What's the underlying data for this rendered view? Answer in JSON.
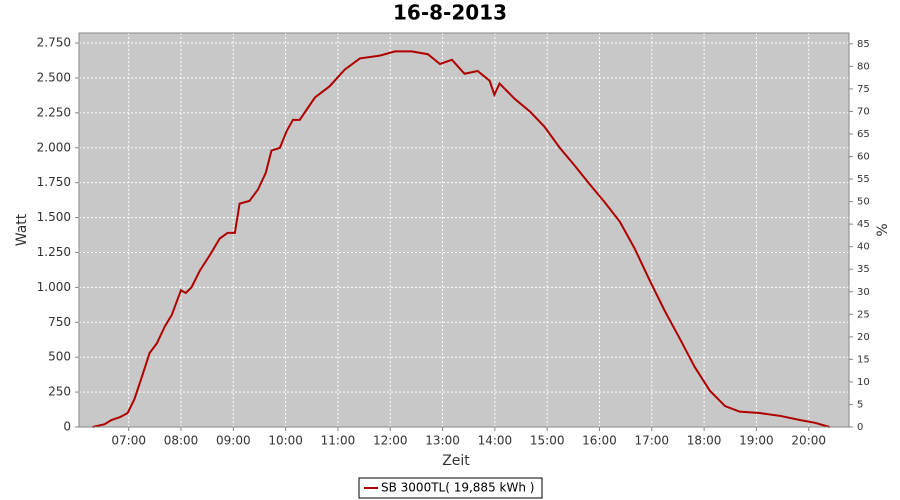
{
  "chart_data": {
    "type": "line",
    "title": "16-8-2013",
    "x_label": "Zeit",
    "y_label": "Watt",
    "y2_label": "%",
    "x": [
      6.31,
      6.54,
      6.67,
      6.83,
      6.98,
      7.11,
      7.27,
      7.4,
      7.54,
      7.69,
      7.82,
      8.0,
      8.09,
      8.2,
      8.36,
      8.55,
      8.74,
      8.89,
      9.03,
      9.12,
      9.31,
      9.47,
      9.62,
      9.73,
      9.89,
      10.02,
      10.14,
      10.27,
      10.56,
      10.84,
      11.13,
      11.42,
      11.8,
      12.09,
      12.41,
      12.72,
      12.95,
      13.18,
      13.42,
      13.67,
      13.9,
      13.99,
      14.09,
      14.38,
      14.67,
      14.95,
      15.24,
      15.53,
      15.81,
      16.1,
      16.39,
      16.67,
      16.96,
      17.25,
      17.54,
      17.82,
      18.11,
      18.4,
      18.68,
      19.06,
      19.45,
      19.83,
      20.12,
      20.4
    ],
    "series": [
      {
        "name": "SB 3000TL( 19,885 kWh )",
        "color": "#b00000",
        "values": [
          0,
          20,
          50,
          70,
          100,
          200,
          380,
          530,
          600,
          720,
          800,
          980,
          960,
          1000,
          1120,
          1230,
          1350,
          1390,
          1390,
          1600,
          1620,
          1700,
          1820,
          1980,
          2000,
          2120,
          2200,
          2200,
          2360,
          2440,
          2560,
          2640,
          2660,
          2690,
          2690,
          2670,
          2600,
          2630,
          2530,
          2550,
          2480,
          2380,
          2460,
          2350,
          2260,
          2150,
          2000,
          1870,
          1740,
          1610,
          1470,
          1280,
          1050,
          830,
          630,
          430,
          260,
          150,
          110,
          100,
          80,
          50,
          30,
          0
        ]
      }
    ],
    "xlim": [
      6.05,
      20.77
    ],
    "xticks": [
      {
        "value": 7,
        "label": "07:00"
      },
      {
        "value": 8,
        "label": "08:00"
      },
      {
        "value": 9,
        "label": "09:00"
      },
      {
        "value": 10,
        "label": "10:00"
      },
      {
        "value": 11,
        "label": "11:00"
      },
      {
        "value": 12,
        "label": "12:00"
      },
      {
        "value": 13,
        "label": "13:00"
      },
      {
        "value": 14,
        "label": "14:00"
      },
      {
        "value": 15,
        "label": "15:00"
      },
      {
        "value": 16,
        "label": "16:00"
      },
      {
        "value": 17,
        "label": "17:00"
      },
      {
        "value": 18,
        "label": "18:00"
      },
      {
        "value": 19,
        "label": "19:00"
      },
      {
        "value": 20,
        "label": "20:00"
      }
    ],
    "ylim": [
      0,
      2822
    ],
    "yticks": [
      0,
      250,
      500,
      750,
      {
        "value": 1000,
        "label": "1.000"
      },
      {
        "value": 1250,
        "label": "1.250"
      },
      {
        "value": 1500,
        "label": "1.500"
      },
      {
        "value": 1750,
        "label": "1.750"
      },
      {
        "value": 2000,
        "label": "2.000"
      },
      {
        "value": 2250,
        "label": "2.250"
      },
      {
        "value": 2500,
        "label": "2.500"
      },
      {
        "value": 2750,
        "label": "2.750"
      }
    ],
    "y2lim": [
      0,
      87.4
    ],
    "y2ticks": [
      0,
      5,
      10,
      15,
      20,
      25,
      30,
      35,
      40,
      45,
      50,
      55,
      60,
      65,
      70,
      75,
      80,
      85
    ],
    "grid": true
  }
}
